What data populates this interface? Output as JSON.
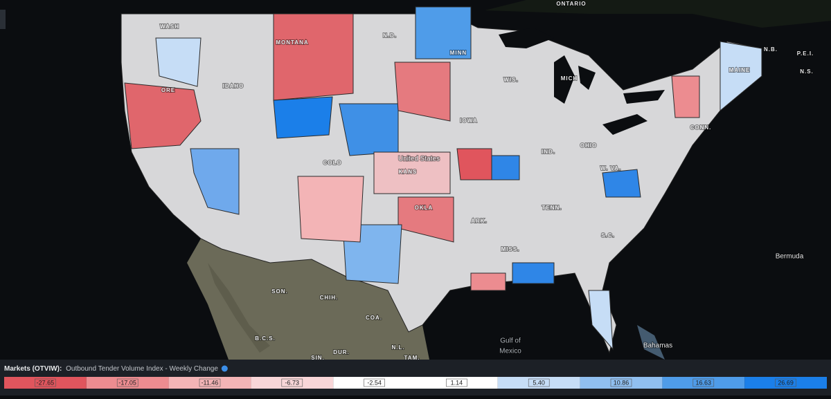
{
  "map": {
    "labels": [
      "ONTARIO",
      "N.D.",
      "WASH",
      "MONTANA",
      "IDAHO",
      "ORE",
      "MINN",
      "WIS.",
      "MICH",
      "MAINE",
      "N.B.",
      "P.E.I.",
      "N.S.",
      "IOWA",
      "CONN.",
      "OHIO",
      "IND.",
      "United States",
      "KANS",
      "COLO",
      "W. VA.",
      "OKLA",
      "TENN.",
      "ARK.",
      "S.C.",
      "MISS.",
      "Bermuda",
      "SON.",
      "CHIH.",
      "COA.",
      "B.C.S.",
      "N.L.",
      "DUR.",
      "TAM.",
      "SIN.",
      "Gulf of",
      "Mexico",
      "Bahamas"
    ]
  },
  "legend": {
    "title": "Markets (OTVIW):",
    "subtitle": "Outbound Tender Volume Index - Weekly Change",
    "stops": [
      {
        "label": "-27.65",
        "color": "#e0555d"
      },
      {
        "label": "-17.05",
        "color": "#ec8c90"
      },
      {
        "label": "-11.46",
        "color": "#f3b4b6"
      },
      {
        "label": "-6.73",
        "color": "#f8d6d8"
      },
      {
        "label": "-2.54",
        "color": "#ffffff"
      },
      {
        "label": "1.14",
        "color": "#ffffff"
      },
      {
        "label": "5.40",
        "color": "#c6ddf6"
      },
      {
        "label": "10.86",
        "color": "#90bff0"
      },
      {
        "label": "16.63",
        "color": "#4f9ce9"
      },
      {
        "label": "26.69",
        "color": "#1b7fe9"
      }
    ]
  }
}
